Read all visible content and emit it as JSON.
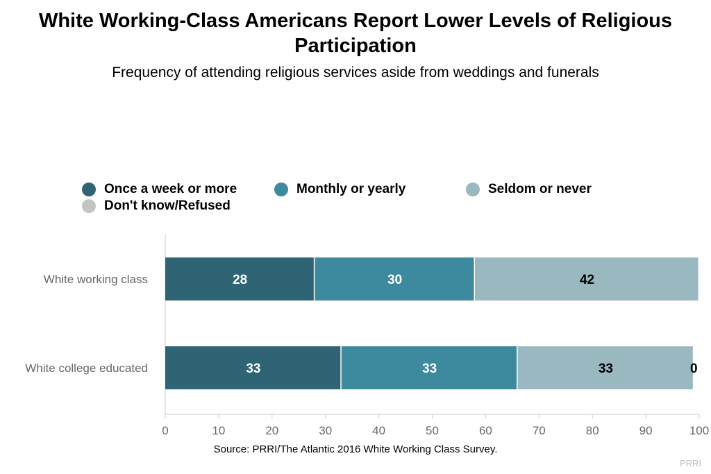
{
  "title": "White Working-Class Americans Report Lower Levels of Religious Participation",
  "subtitle": "Frequency of attending religious services aside from weddings and funerals",
  "source": "Source: PRRI/The Atlantic 2016 White Working Class Survey.",
  "brand": "PRRI",
  "legend": [
    {
      "label": "Once a week or more",
      "color": "#2e6474"
    },
    {
      "label": "Monthly or yearly",
      "color": "#3d8a9e"
    },
    {
      "label": "Seldom or never",
      "color": "#9ab8c0"
    },
    {
      "label": "Don't know/Refused",
      "color": "#c4c4c4"
    }
  ],
  "chart_data": {
    "type": "bar",
    "orientation": "horizontal",
    "stacked": true,
    "categories": [
      "White working class",
      "White college educated"
    ],
    "series": [
      {
        "name": "Once a week or more",
        "values": [
          28,
          33
        ],
        "labels": [
          "28",
          "33"
        ],
        "color": "#2e6474",
        "label_color": "#ffffff"
      },
      {
        "name": "Monthly or yearly",
        "values": [
          30,
          33
        ],
        "labels": [
          "30",
          "33"
        ],
        "color": "#3d8a9e",
        "label_color": "#ffffff"
      },
      {
        "name": "Seldom or never",
        "values": [
          42,
          33
        ],
        "labels": [
          "42",
          "33"
        ],
        "color": "#9ab8c0",
        "label_color": "#000000"
      },
      {
        "name": "Don't know/Refused",
        "values": [
          0,
          0
        ],
        "labels": [
          "",
          "0"
        ],
        "color": "#c4c4c4",
        "label_color": "#000000"
      }
    ],
    "xlim": [
      0,
      100
    ],
    "xticks": [
      "0",
      "10",
      "20",
      "30",
      "40",
      "50",
      "60",
      "70",
      "80",
      "90",
      "100"
    ],
    "grid": false,
    "legend_position": "top"
  }
}
